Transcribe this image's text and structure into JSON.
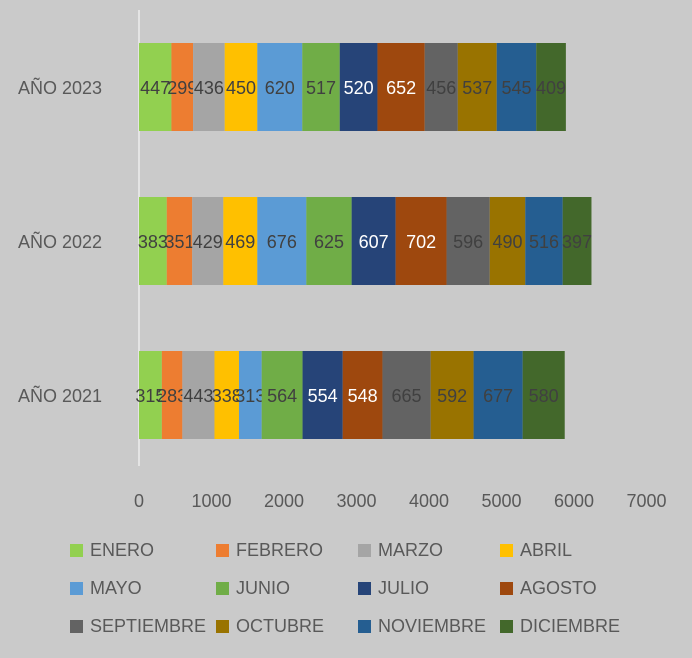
{
  "chart_data": {
    "type": "bar",
    "orientation": "horizontal",
    "stacked": true,
    "categories": [
      "AÑO 2023",
      "AÑO 2022",
      "AÑO 2021"
    ],
    "series": [
      {
        "name": "ENERO",
        "color": "#92d050",
        "values": [
          447,
          383,
          315
        ]
      },
      {
        "name": "FEBRERO",
        "color": "#ed7d31",
        "values": [
          299,
          351,
          283
        ]
      },
      {
        "name": "MARZO",
        "color": "#a5a5a5",
        "values": [
          436,
          429,
          443
        ]
      },
      {
        "name": "ABRIL",
        "color": "#ffc000",
        "values": [
          450,
          469,
          338
        ]
      },
      {
        "name": "MAYO",
        "color": "#5b9bd5",
        "values": [
          620,
          676,
          313
        ]
      },
      {
        "name": "JUNIO",
        "color": "#70ad47",
        "values": [
          517,
          625,
          564
        ]
      },
      {
        "name": "JULIO",
        "color": "#264478",
        "values": [
          520,
          607,
          554
        ]
      },
      {
        "name": "AGOSTO",
        "color": "#9e480e",
        "values": [
          652,
          702,
          548
        ]
      },
      {
        "name": "SEPTIEMBRE",
        "color": "#636363",
        "values": [
          456,
          596,
          665
        ]
      },
      {
        "name": "OCTUBRE",
        "color": "#997300",
        "values": [
          537,
          490,
          592
        ]
      },
      {
        "name": "NOVIEMBRE",
        "color": "#255e91",
        "values": [
          545,
          516,
          677
        ]
      },
      {
        "name": "DICIEMBRE",
        "color": "#43682b",
        "values": [
          409,
          397,
          580
        ]
      }
    ],
    "xlim": [
      0,
      7000
    ],
    "xticks": [
      0,
      1000,
      2000,
      3000,
      4000,
      5000,
      6000,
      7000
    ],
    "legend_position": "bottom",
    "grid": false,
    "background": "#cacaca"
  }
}
